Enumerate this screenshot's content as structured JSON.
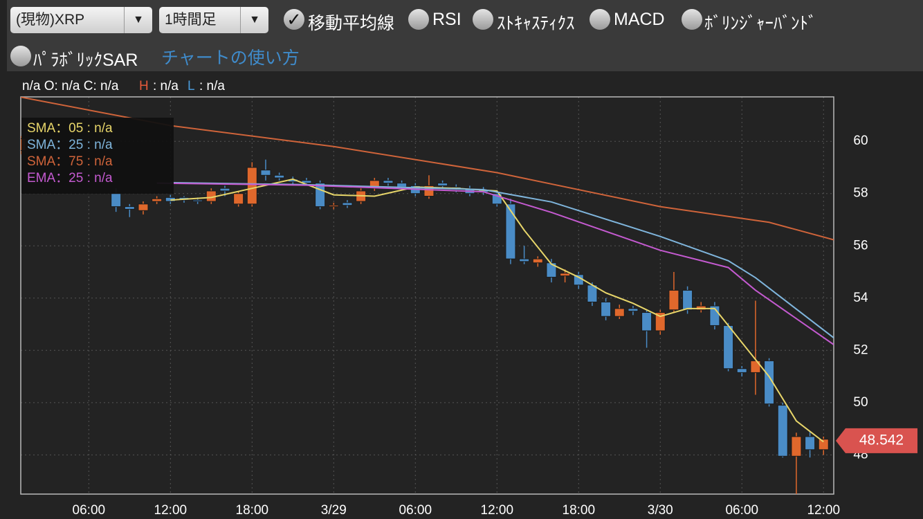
{
  "toolbar": {
    "pair_select": "(現物)XRP",
    "interval_select": "1時間足",
    "indicators": [
      {
        "label": "移動平均線",
        "checked": true
      },
      {
        "label": "RSI",
        "checked": false
      },
      {
        "label": "ｽﾄｷｬｽﾃｨｸｽ",
        "checked": false
      },
      {
        "label": "MACD",
        "checked": false
      },
      {
        "label": "ﾎﾞﾘﾝｼﾞｬｰﾊﾞﾝﾄﾞ",
        "checked": false
      },
      {
        "label": "ﾊﾟﾗﾎﾞﾘｯｸSAR",
        "checked": false
      }
    ],
    "help_link": "チャートの使い方"
  },
  "chart_data": {
    "type": "candlestick",
    "ohlc_header": {
      "prefix": "n/a O: n/a C: n/a",
      "h_label": "H",
      "h_value": ": n/a",
      "l_label": "L",
      "l_value": ": n/a"
    },
    "up_color": "#e0682c",
    "down_color": "#4a8cc6",
    "xlim": [
      1,
      60.75
    ],
    "ylim": [
      46.5,
      61.7
    ],
    "xticks": [
      {
        "value": 6,
        "label": "06:00"
      },
      {
        "value": 12,
        "label": "12:00"
      },
      {
        "value": 18,
        "label": "18:00"
      },
      {
        "value": 24,
        "label": "3/29"
      },
      {
        "value": 30,
        "label": "06:00"
      },
      {
        "value": 36,
        "label": "12:00"
      },
      {
        "value": 42,
        "label": "18:00"
      },
      {
        "value": 48,
        "label": "3/30"
      },
      {
        "value": 54,
        "label": "06:00"
      },
      {
        "value": 60,
        "label": "12:00"
      }
    ],
    "yticks": [
      48,
      50,
      52,
      54,
      56,
      58,
      60
    ],
    "grid": true,
    "candles": {
      "x": [
        1,
        8,
        9,
        10,
        11,
        12,
        13,
        14,
        15,
        16,
        17,
        18,
        19,
        20,
        21,
        22,
        23,
        24,
        25,
        26,
        27,
        28,
        29,
        30,
        31,
        32,
        33,
        34,
        35,
        36,
        37,
        38,
        39,
        40,
        41,
        42,
        43,
        44,
        45,
        46,
        47,
        48,
        49,
        50,
        51,
        52,
        53,
        54,
        55,
        56,
        57,
        58,
        59,
        60
      ],
      "open": [
        59.65,
        58.0,
        57.5,
        57.35,
        57.7,
        57.85,
        57.85,
        57.75,
        57.7,
        58.2,
        57.6,
        57.6,
        58.9,
        58.7,
        58.55,
        58.5,
        58.4,
        57.5,
        57.65,
        57.7,
        58.2,
        58.5,
        58.4,
        58.3,
        57.9,
        58.4,
        58.25,
        58.2,
        58.15,
        58.0,
        57.6,
        55.5,
        55.35,
        55.35,
        54.85,
        54.9,
        54.5,
        53.85,
        53.3,
        53.6,
        53.45,
        52.75,
        53.55,
        54.3,
        53.55,
        53.7,
        52.95,
        51.3,
        51.15,
        51.6,
        49.9,
        47.95,
        48.7,
        48.2
      ],
      "high": [
        60.2,
        58.2,
        57.6,
        57.7,
        57.9,
        57.95,
        57.9,
        57.85,
        58.2,
        58.3,
        58.1,
        59.2,
        59.3,
        58.8,
        58.65,
        58.6,
        58.5,
        57.65,
        57.75,
        58.2,
        58.6,
        58.6,
        58.5,
        58.4,
        58.7,
        58.5,
        58.35,
        58.3,
        58.25,
        58.1,
        57.8,
        56.0,
        55.6,
        55.5,
        55.1,
        55.0,
        54.6,
        54.0,
        53.75,
        53.7,
        53.55,
        53.55,
        55.0,
        54.45,
        53.85,
        53.85,
        53.05,
        51.4,
        53.9,
        51.7,
        50.0,
        48.85,
        48.9,
        48.7
      ],
      "low": [
        59.5,
        57.3,
        57.1,
        57.2,
        57.6,
        57.6,
        57.65,
        57.6,
        57.6,
        57.9,
        57.5,
        57.5,
        58.5,
        58.5,
        58.35,
        58.3,
        57.4,
        57.4,
        57.45,
        57.6,
        58.1,
        58.3,
        58.15,
        57.9,
        57.8,
        58.2,
        58.05,
        57.9,
        57.95,
        57.5,
        55.3,
        55.3,
        55.2,
        54.6,
        54.6,
        54.35,
        53.7,
        53.15,
        53.2,
        53.35,
        52.1,
        52.6,
        53.45,
        53.4,
        53.45,
        52.8,
        51.2,
        51.0,
        50.3,
        49.85,
        47.9,
        46.5,
        47.9,
        48.0
      ],
      "close": [
        60.1,
        57.5,
        57.4,
        57.6,
        57.8,
        57.7,
        57.75,
        57.7,
        58.1,
        58.1,
        58.0,
        59.0,
        58.7,
        58.6,
        58.45,
        58.4,
        57.5,
        57.55,
        57.55,
        58.1,
        58.5,
        58.4,
        58.25,
        58.0,
        58.3,
        58.3,
        58.15,
        58.0,
        58.05,
        57.6,
        55.5,
        55.4,
        55.5,
        54.8,
        54.95,
        54.5,
        53.85,
        53.3,
        53.6,
        53.5,
        52.75,
        53.45,
        54.3,
        53.55,
        53.7,
        52.95,
        51.3,
        51.15,
        51.6,
        49.95,
        47.95,
        48.7,
        48.2,
        48.6
      ]
    },
    "series": [
      {
        "name": "SMA：05 : n/a",
        "color": "#e8d66a",
        "x": [
          12,
          15,
          18,
          21,
          24,
          27,
          30,
          33,
          36,
          38,
          40,
          42,
          44,
          46,
          48,
          50,
          52,
          54,
          56,
          58,
          60
        ],
        "values": [
          57.75,
          57.85,
          58.2,
          58.55,
          57.95,
          57.9,
          58.25,
          58.2,
          58.1,
          56.6,
          55.3,
          54.8,
          54.2,
          53.8,
          53.3,
          53.6,
          53.6,
          52.3,
          51.0,
          49.3,
          48.5
        ]
      },
      {
        "name": "SMA：25 : n/a",
        "color": "#7fb5dc",
        "x": [
          12,
          22,
          35,
          40,
          48,
          53,
          55,
          60.75
        ],
        "values": [
          58.42,
          58.34,
          58.15,
          57.68,
          56.36,
          55.43,
          54.78,
          52.48
        ]
      },
      {
        "name": "SMA：75 : n/a",
        "color": "#d0643a",
        "x": [
          1,
          12,
          24,
          36,
          48,
          56,
          60.75
        ],
        "values": [
          61.69,
          60.6,
          59.8,
          58.8,
          57.5,
          56.9,
          56.23
        ]
      },
      {
        "name": "EMA：25 : n/a",
        "color": "#c45ad0",
        "x": [
          11,
          22,
          35,
          40,
          48,
          53,
          55,
          60.75
        ],
        "values": [
          58.4,
          58.32,
          58.07,
          57.28,
          55.83,
          55.17,
          54.3,
          52.22
        ]
      }
    ],
    "last_price": 48.542
  }
}
